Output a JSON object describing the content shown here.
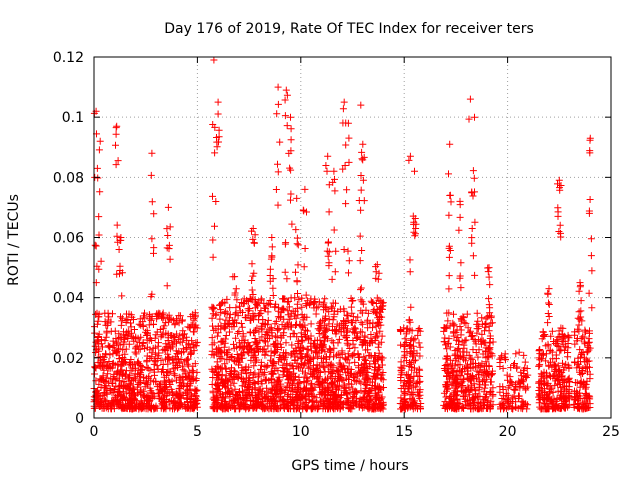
{
  "chart_data": {
    "type": "scatter",
    "title": "Day 176 of 2019, Rate Of TEC Index for receiver ters",
    "xlabel": "GPS time / hours",
    "ylabel": "ROTI / TECUs",
    "xlim": [
      0,
      25
    ],
    "ylim": [
      0,
      0.12
    ],
    "xticks": [
      0,
      5,
      10,
      15,
      20,
      25
    ],
    "yticks": [
      0,
      0.02,
      0.04,
      0.06,
      0.08,
      0.1,
      0.12
    ],
    "ytick_labels": [
      "0",
      "0.02",
      "0.04",
      "0.06",
      "0.08",
      "0.1",
      "0.12"
    ],
    "grid": true,
    "marker": "+",
    "color": "#ff0000",
    "seed": 176,
    "gaps": [
      [
        5.1,
        5.7
      ],
      [
        14.1,
        14.8
      ],
      [
        15.8,
        16.9
      ],
      [
        19.3,
        19.6
      ],
      [
        21.0,
        21.5
      ],
      [
        23.0,
        23.2
      ]
    ],
    "dense_clusters": [
      {
        "x_from": 0.0,
        "x_to": 5.0,
        "count": 900,
        "y_max": 0.035
      },
      {
        "x_from": 5.7,
        "x_to": 14.0,
        "count": 1700,
        "y_max": 0.04
      },
      {
        "x_from": 14.8,
        "x_to": 15.8,
        "count": 160,
        "y_max": 0.03
      },
      {
        "x_from": 16.9,
        "x_to": 19.3,
        "count": 420,
        "y_max": 0.035
      },
      {
        "x_from": 19.6,
        "x_to": 21.0,
        "count": 110,
        "y_max": 0.022
      },
      {
        "x_from": 21.5,
        "x_to": 24.0,
        "count": 420,
        "y_max": 0.03
      }
    ],
    "spikes": [
      {
        "x": 0.1,
        "y_from": 0.04,
        "y_to": 0.102
      },
      {
        "x": 0.3,
        "y_from": 0.04,
        "y_to": 0.092
      },
      {
        "x": 1.1,
        "y_from": 0.045,
        "y_to": 0.097
      },
      {
        "x": 1.3,
        "y_from": 0.04,
        "y_to": 0.06
      },
      {
        "x": 2.8,
        "y_from": 0.04,
        "y_to": 0.088
      },
      {
        "x": 3.6,
        "y_from": 0.04,
        "y_to": 0.07
      },
      {
        "x": 5.8,
        "y_from": 0.04,
        "y_to": 0.119
      },
      {
        "x": 6.0,
        "y_from": 0.09,
        "y_to": 0.105
      },
      {
        "x": 6.8,
        "y_from": 0.03,
        "y_to": 0.047
      },
      {
        "x": 7.7,
        "y_from": 0.04,
        "y_to": 0.063
      },
      {
        "x": 8.6,
        "y_from": 0.04,
        "y_to": 0.06
      },
      {
        "x": 8.9,
        "y_from": 0.07,
        "y_to": 0.11
      },
      {
        "x": 9.3,
        "y_from": 0.04,
        "y_to": 0.109
      },
      {
        "x": 9.5,
        "y_from": 0.05,
        "y_to": 0.1
      },
      {
        "x": 9.8,
        "y_from": 0.04,
        "y_to": 0.073
      },
      {
        "x": 10.2,
        "y_from": 0.04,
        "y_to": 0.076
      },
      {
        "x": 11.3,
        "y_from": 0.04,
        "y_to": 0.087
      },
      {
        "x": 11.6,
        "y_from": 0.04,
        "y_to": 0.082
      },
      {
        "x": 12.1,
        "y_from": 0.04,
        "y_to": 0.105
      },
      {
        "x": 12.3,
        "y_from": 0.04,
        "y_to": 0.098
      },
      {
        "x": 12.9,
        "y_from": 0.04,
        "y_to": 0.104
      },
      {
        "x": 13.0,
        "y_from": 0.07,
        "y_to": 0.091
      },
      {
        "x": 13.7,
        "y_from": 0.03,
        "y_to": 0.051
      },
      {
        "x": 15.3,
        "y_from": 0.03,
        "y_to": 0.087
      },
      {
        "x": 15.5,
        "y_from": 0.06,
        "y_to": 0.082
      },
      {
        "x": 17.2,
        "y_from": 0.03,
        "y_to": 0.091
      },
      {
        "x": 17.7,
        "y_from": 0.04,
        "y_to": 0.072
      },
      {
        "x": 18.2,
        "y_from": 0.05,
        "y_to": 0.106
      },
      {
        "x": 18.4,
        "y_from": 0.04,
        "y_to": 0.1
      },
      {
        "x": 19.1,
        "y_from": 0.03,
        "y_to": 0.05
      },
      {
        "x": 22.0,
        "y_from": 0.03,
        "y_to": 0.043
      },
      {
        "x": 22.5,
        "y_from": 0.06,
        "y_to": 0.079
      },
      {
        "x": 23.5,
        "y_from": 0.03,
        "y_to": 0.045
      },
      {
        "x": 24.0,
        "y_from": 0.03,
        "y_to": 0.093
      }
    ]
  }
}
